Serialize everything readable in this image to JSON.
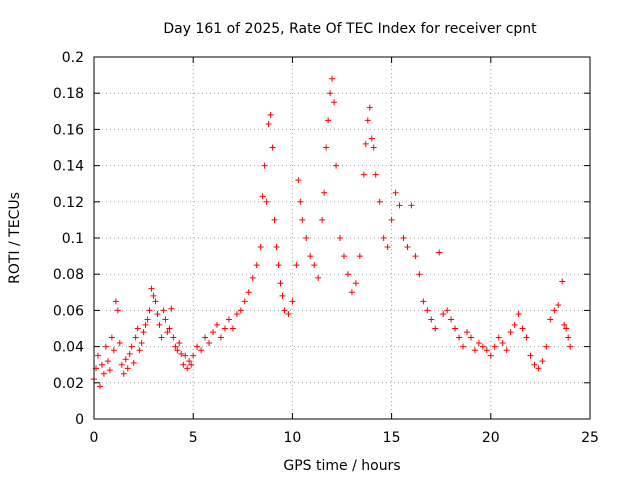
{
  "chart_data": {
    "type": "scatter",
    "title": "Day 161 of 2025, Rate Of TEC Index for receiver cpnt",
    "xlabel": "GPS time / hours",
    "ylabel": "ROTI / TECUs",
    "xlim": [
      0,
      25
    ],
    "ylim": [
      0,
      0.2
    ],
    "xticks": [
      0,
      5,
      10,
      15,
      20,
      25
    ],
    "xtick_labels": [
      "0",
      "5",
      "10",
      "15",
      "20",
      "25"
    ],
    "yticks": [
      0,
      0.02,
      0.04,
      0.06,
      0.08,
      0.1,
      0.12,
      0.14,
      0.16,
      0.18,
      0.2
    ],
    "ytick_labels": [
      "0",
      "0.02",
      "0.04",
      "0.06",
      "0.08",
      "0.1",
      "0.12",
      "0.14",
      "0.16",
      "0.18",
      "0.2"
    ],
    "grid": true,
    "marker": "+",
    "color": "#ff0000",
    "series": [
      {
        "name": "ROTI",
        "points": [
          [
            0.0,
            0.022
          ],
          [
            0.1,
            0.028
          ],
          [
            0.2,
            0.035
          ],
          [
            0.3,
            0.018
          ],
          [
            0.4,
            0.03
          ],
          [
            0.5,
            0.025
          ],
          [
            0.6,
            0.04
          ],
          [
            0.7,
            0.032
          ],
          [
            0.8,
            0.027
          ],
          [
            0.9,
            0.045
          ],
          [
            1.0,
            0.038
          ],
          [
            1.1,
            0.065
          ],
          [
            1.2,
            0.06
          ],
          [
            1.3,
            0.042
          ],
          [
            1.4,
            0.03
          ],
          [
            1.5,
            0.025
          ],
          [
            1.6,
            0.033
          ],
          [
            1.7,
            0.028
          ],
          [
            1.8,
            0.036
          ],
          [
            1.9,
            0.04
          ],
          [
            2.0,
            0.031
          ],
          [
            2.1,
            0.045
          ],
          [
            2.2,
            0.05
          ],
          [
            2.3,
            0.038
          ],
          [
            2.4,
            0.042
          ],
          [
            2.5,
            0.048
          ],
          [
            2.6,
            0.052
          ],
          [
            2.7,
            0.055
          ],
          [
            2.8,
            0.06
          ],
          [
            2.9,
            0.072
          ],
          [
            3.0,
            0.068
          ],
          [
            3.1,
            0.065
          ],
          [
            3.2,
            0.058
          ],
          [
            3.3,
            0.052
          ],
          [
            3.4,
            0.045
          ],
          [
            3.5,
            0.06
          ],
          [
            3.6,
            0.055
          ],
          [
            3.7,
            0.048
          ],
          [
            3.8,
            0.05
          ],
          [
            3.9,
            0.061
          ],
          [
            4.0,
            0.045
          ],
          [
            4.1,
            0.04
          ],
          [
            4.2,
            0.038
          ],
          [
            4.3,
            0.042
          ],
          [
            4.4,
            0.036
          ],
          [
            4.5,
            0.03
          ],
          [
            4.6,
            0.035
          ],
          [
            4.7,
            0.028
          ],
          [
            4.8,
            0.032
          ],
          [
            4.9,
            0.03
          ],
          [
            5.0,
            0.035
          ],
          [
            5.2,
            0.04
          ],
          [
            5.4,
            0.038
          ],
          [
            5.6,
            0.045
          ],
          [
            5.8,
            0.042
          ],
          [
            6.0,
            0.048
          ],
          [
            6.2,
            0.052
          ],
          [
            6.4,
            0.045
          ],
          [
            6.6,
            0.05
          ],
          [
            6.8,
            0.055
          ],
          [
            7.0,
            0.05
          ],
          [
            7.2,
            0.058
          ],
          [
            7.4,
            0.06
          ],
          [
            7.6,
            0.065
          ],
          [
            7.8,
            0.07
          ],
          [
            8.0,
            0.078
          ],
          [
            8.2,
            0.085
          ],
          [
            8.4,
            0.095
          ],
          [
            8.5,
            0.123
          ],
          [
            8.6,
            0.14
          ],
          [
            8.7,
            0.12
          ],
          [
            8.8,
            0.163
          ],
          [
            8.9,
            0.168
          ],
          [
            9.0,
            0.15
          ],
          [
            9.1,
            0.11
          ],
          [
            9.2,
            0.095
          ],
          [
            9.3,
            0.085
          ],
          [
            9.4,
            0.075
          ],
          [
            9.5,
            0.068
          ],
          [
            9.6,
            0.06
          ],
          [
            9.8,
            0.058
          ],
          [
            10.0,
            0.065
          ],
          [
            10.2,
            0.085
          ],
          [
            10.3,
            0.132
          ],
          [
            10.4,
            0.12
          ],
          [
            10.5,
            0.11
          ],
          [
            10.7,
            0.1
          ],
          [
            10.9,
            0.09
          ],
          [
            11.1,
            0.085
          ],
          [
            11.3,
            0.078
          ],
          [
            11.5,
            0.11
          ],
          [
            11.6,
            0.125
          ],
          [
            11.7,
            0.15
          ],
          [
            11.8,
            0.165
          ],
          [
            11.9,
            0.18
          ],
          [
            12.0,
            0.188
          ],
          [
            12.1,
            0.175
          ],
          [
            12.2,
            0.14
          ],
          [
            12.4,
            0.1
          ],
          [
            12.6,
            0.09
          ],
          [
            12.8,
            0.08
          ],
          [
            13.0,
            0.07
          ],
          [
            13.2,
            0.075
          ],
          [
            13.4,
            0.09
          ],
          [
            13.6,
            0.135
          ],
          [
            13.7,
            0.152
          ],
          [
            13.8,
            0.165
          ],
          [
            13.9,
            0.172
          ],
          [
            14.0,
            0.155
          ],
          [
            14.1,
            0.15
          ],
          [
            14.2,
            0.135
          ],
          [
            14.4,
            0.12
          ],
          [
            14.6,
            0.1
          ],
          [
            14.8,
            0.095
          ],
          [
            15.0,
            0.11
          ],
          [
            15.2,
            0.125
          ],
          [
            15.4,
            0.118
          ],
          [
            15.6,
            0.1
          ],
          [
            15.8,
            0.095
          ],
          [
            16.0,
            0.118
          ],
          [
            16.2,
            0.09
          ],
          [
            16.4,
            0.08
          ],
          [
            16.6,
            0.065
          ],
          [
            16.8,
            0.06
          ],
          [
            17.0,
            0.055
          ],
          [
            17.2,
            0.05
          ],
          [
            17.4,
            0.092
          ],
          [
            17.6,
            0.058
          ],
          [
            17.8,
            0.06
          ],
          [
            18.0,
            0.055
          ],
          [
            18.2,
            0.05
          ],
          [
            18.4,
            0.045
          ],
          [
            18.6,
            0.04
          ],
          [
            18.8,
            0.048
          ],
          [
            19.0,
            0.045
          ],
          [
            19.2,
            0.038
          ],
          [
            19.4,
            0.042
          ],
          [
            19.6,
            0.04
          ],
          [
            19.8,
            0.038
          ],
          [
            20.0,
            0.035
          ],
          [
            20.2,
            0.04
          ],
          [
            20.4,
            0.045
          ],
          [
            20.6,
            0.042
          ],
          [
            20.8,
            0.038
          ],
          [
            21.0,
            0.048
          ],
          [
            21.2,
            0.052
          ],
          [
            21.4,
            0.058
          ],
          [
            21.6,
            0.05
          ],
          [
            21.8,
            0.045
          ],
          [
            22.0,
            0.035
          ],
          [
            22.2,
            0.03
          ],
          [
            22.4,
            0.028
          ],
          [
            22.6,
            0.032
          ],
          [
            22.8,
            0.04
          ],
          [
            23.0,
            0.055
          ],
          [
            23.2,
            0.06
          ],
          [
            23.4,
            0.063
          ],
          [
            23.6,
            0.076
          ],
          [
            23.7,
            0.052
          ],
          [
            23.8,
            0.05
          ],
          [
            23.9,
            0.045
          ],
          [
            24.0,
            0.04
          ]
        ]
      }
    ]
  }
}
